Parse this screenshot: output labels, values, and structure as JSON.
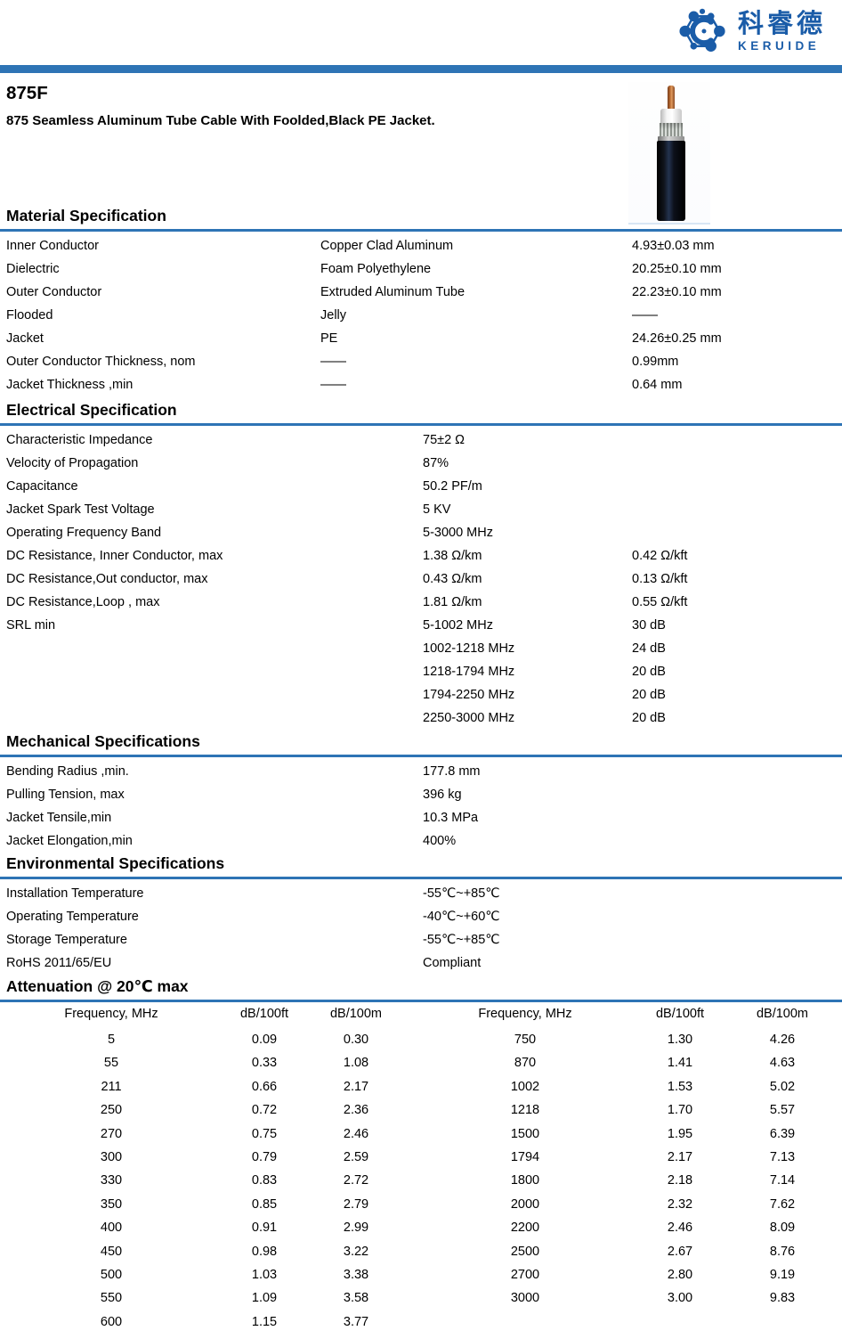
{
  "colors": {
    "accent": "#2E74B5",
    "brand_blue": "#1A5CA8"
  },
  "brand": {
    "name_cn": "科睿德",
    "name_en": "KERUIDE"
  },
  "product": {
    "model": "875F",
    "description": "875 Seamless Aluminum Tube Cable With Foolded,Black PE Jacket."
  },
  "sections": {
    "material": {
      "title": "Material Specification",
      "rows": [
        [
          "Inner Conductor",
          "Copper Clad Aluminum",
          "4.93±0.03 mm"
        ],
        [
          "Dielectric",
          "Foam Polyethylene",
          "20.25±0.10 mm"
        ],
        [
          "Outer Conductor",
          "Extruded Aluminum Tube",
          "22.23±0.10 mm"
        ],
        [
          "Flooded",
          "Jelly",
          "——"
        ],
        [
          "Jacket",
          "PE",
          "24.26±0.25 mm"
        ],
        [
          "Outer Conductor Thickness, nom",
          "——",
          "0.99mm"
        ],
        [
          "Jacket Thickness ,min",
          "——",
          "0.64 mm"
        ]
      ]
    },
    "electrical": {
      "title": "Electrical Specification",
      "rows": [
        [
          "Characteristic Impedance",
          "75±2 Ω",
          ""
        ],
        [
          "Velocity of Propagation",
          "87%",
          ""
        ],
        [
          "Capacitance",
          "50.2 PF/m",
          ""
        ],
        [
          "Jacket Spark Test Voltage",
          "5 KV",
          ""
        ],
        [
          "Operating Frequency Band",
          "5-3000 MHz",
          ""
        ],
        [
          "DC Resistance, Inner Conductor, max",
          "1.38 Ω/km",
          "0.42 Ω/kft"
        ],
        [
          "DC Resistance,Out conductor, max",
          "0.43 Ω/km",
          "0.13 Ω/kft"
        ],
        [
          "DC Resistance,Loop , max",
          "1.81 Ω/km",
          "0.55 Ω/kft"
        ],
        [
          "SRL min",
          "5-1002 MHz",
          "30 dB"
        ],
        [
          "",
          "1002-1218 MHz",
          "24 dB"
        ],
        [
          "",
          "1218-1794 MHz",
          "20 dB"
        ],
        [
          "",
          "1794-2250 MHz",
          "20 dB"
        ],
        [
          "",
          "2250-3000 MHz",
          "20 dB"
        ]
      ]
    },
    "mechanical": {
      "title": "Mechanical Specifications",
      "rows": [
        [
          "Bending Radius ,min.",
          "177.8 mm"
        ],
        [
          "Pulling Tension, max",
          "396 kg"
        ],
        [
          "Jacket Tensile,min",
          "10.3 MPa"
        ],
        [
          "Jacket Elongation,min",
          "400%"
        ]
      ]
    },
    "environmental": {
      "title": "Environmental Specifications",
      "rows": [
        [
          "Installation Temperature",
          "-55℃~+85℃"
        ],
        [
          "Operating Temperature",
          "-40℃~+60℃"
        ],
        [
          "Storage Temperature",
          "-55℃~+85℃"
        ],
        [
          "RoHS 2011/65/EU",
          "Compliant"
        ]
      ]
    },
    "attenuation": {
      "title": "Attenuation @ 20℃ max",
      "headers_left": [
        "Frequency, MHz",
        "dB/100ft",
        "dB/100m"
      ],
      "headers_right": [
        "Frequency, MHz",
        "dB/100ft",
        "dB/100m"
      ],
      "rows_left": [
        [
          "5",
          "0.09",
          "0.30"
        ],
        [
          "55",
          "0.33",
          "1.08"
        ],
        [
          "211",
          "0.66",
          "2.17"
        ],
        [
          "250",
          "0.72",
          "2.36"
        ],
        [
          "270",
          "0.75",
          "2.46"
        ],
        [
          "300",
          "0.79",
          "2.59"
        ],
        [
          "330",
          "0.83",
          "2.72"
        ],
        [
          "350",
          "0.85",
          "2.79"
        ],
        [
          "400",
          "0.91",
          "2.99"
        ],
        [
          "450",
          "0.98",
          "3.22"
        ],
        [
          "500",
          "1.03",
          "3.38"
        ],
        [
          "550",
          "1.09",
          "3.58"
        ],
        [
          "600",
          "1.15",
          "3.77"
        ]
      ],
      "rows_right": [
        [
          "750",
          "1.30",
          "4.26"
        ],
        [
          "870",
          "1.41",
          "4.63"
        ],
        [
          "1002",
          "1.53",
          "5.02"
        ],
        [
          "1218",
          "1.70",
          "5.57"
        ],
        [
          "1500",
          "1.95",
          "6.39"
        ],
        [
          "1794",
          "2.17",
          "7.13"
        ],
        [
          "1800",
          "2.18",
          "7.14"
        ],
        [
          "2000",
          "2.32",
          "7.62"
        ],
        [
          "2200",
          "2.46",
          "8.09"
        ],
        [
          "2500",
          "2.67",
          "8.76"
        ],
        [
          "2700",
          "2.80",
          "9.19"
        ],
        [
          "3000",
          "3.00",
          "9.83"
        ]
      ]
    }
  }
}
